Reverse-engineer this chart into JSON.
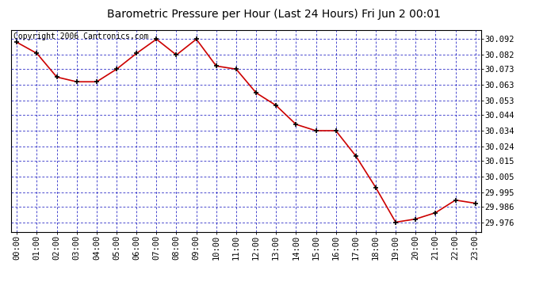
{
  "title": "Barometric Pressure per Hour (Last 24 Hours) Fri Jun 2 00:01",
  "copyright": "Copyright 2006 Cantronics.com",
  "hours": [
    "00:00",
    "01:00",
    "02:00",
    "03:00",
    "04:00",
    "05:00",
    "06:00",
    "07:00",
    "08:00",
    "09:00",
    "10:00",
    "11:00",
    "12:00",
    "13:00",
    "14:00",
    "15:00",
    "16:00",
    "17:00",
    "18:00",
    "19:00",
    "20:00",
    "21:00",
    "22:00",
    "23:00"
  ],
  "values": [
    30.09,
    30.083,
    30.068,
    30.065,
    30.065,
    30.073,
    30.083,
    30.092,
    30.082,
    30.092,
    30.075,
    30.073,
    30.058,
    30.05,
    30.038,
    30.034,
    30.034,
    30.018,
    29.998,
    29.976,
    29.978,
    29.982,
    29.99,
    29.988
  ],
  "ylim_min": 29.97,
  "ylim_max": 30.098,
  "yticks": [
    30.092,
    30.082,
    30.073,
    30.063,
    30.053,
    30.044,
    30.034,
    30.024,
    30.015,
    30.005,
    29.995,
    29.986,
    29.976
  ],
  "line_color": "#cc0000",
  "marker_color": "#000000",
  "plot_bg_color": "#ffffff",
  "grid_color": "#0000bb",
  "title_color": "#000000",
  "title_fontsize": 10,
  "copyright_fontsize": 7,
  "tick_fontsize": 7.5
}
